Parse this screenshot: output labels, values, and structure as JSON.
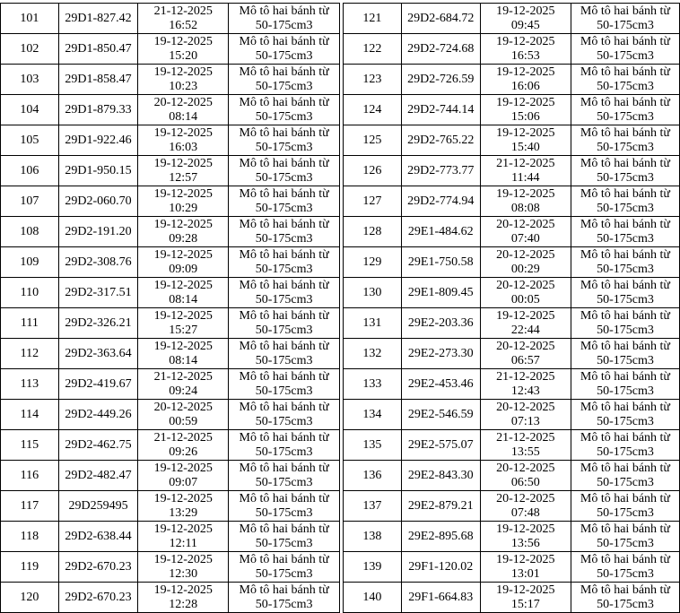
{
  "tables": [
    {
      "rows": [
        {
          "no": "101",
          "plate": "29D1-827.42",
          "time": "21-12-2025 16:52",
          "type": "Mô tô hai bánh từ 50-175cm3"
        },
        {
          "no": "102",
          "plate": "29D1-850.47",
          "time": "19-12-2025 15:20",
          "type": "Mô tô hai bánh từ 50-175cm3"
        },
        {
          "no": "103",
          "plate": "29D1-858.47",
          "time": "19-12-2025 10:23",
          "type": "Mô tô hai bánh từ 50-175cm3"
        },
        {
          "no": "104",
          "plate": "29D1-879.33",
          "time": "20-12-2025 08:14",
          "type": "Mô tô hai bánh từ 50-175cm3"
        },
        {
          "no": "105",
          "plate": "29D1-922.46",
          "time": "19-12-2025 16:03",
          "type": "Mô tô hai bánh từ 50-175cm3"
        },
        {
          "no": "106",
          "plate": "29D1-950.15",
          "time": "19-12-2025 12:57",
          "type": "Mô tô hai bánh từ 50-175cm3"
        },
        {
          "no": "107",
          "plate": "29D2-060.70",
          "time": "19-12-2025 10:29",
          "type": "Mô tô hai bánh từ 50-175cm3"
        },
        {
          "no": "108",
          "plate": "29D2-191.20",
          "time": "19-12-2025 09:28",
          "type": "Mô tô hai bánh từ 50-175cm3"
        },
        {
          "no": "109",
          "plate": "29D2-308.76",
          "time": "19-12-2025 09:09",
          "type": "Mô tô hai bánh từ 50-175cm3"
        },
        {
          "no": "110",
          "plate": "29D2-317.51",
          "time": "19-12-2025 08:14",
          "type": "Mô tô hai bánh từ 50-175cm3"
        },
        {
          "no": "111",
          "plate": "29D2-326.21",
          "time": "19-12-2025 15:27",
          "type": "Mô tô hai bánh từ 50-175cm3"
        },
        {
          "no": "112",
          "plate": "29D2-363.64",
          "time": "19-12-2025 08:14",
          "type": "Mô tô hai bánh từ 50-175cm3"
        },
        {
          "no": "113",
          "plate": "29D2-419.67",
          "time": "21-12-2025 09:24",
          "type": "Mô tô hai bánh từ 50-175cm3"
        },
        {
          "no": "114",
          "plate": "29D2-449.26",
          "time": "20-12-2025 00:59",
          "type": "Mô tô hai bánh từ 50-175cm3"
        },
        {
          "no": "115",
          "plate": "29D2-462.75",
          "time": "21-12-2025 09:26",
          "type": "Mô tô hai bánh từ 50-175cm3"
        },
        {
          "no": "116",
          "plate": "29D2-482.47",
          "time": "19-12-2025 09:07",
          "type": "Mô tô hai bánh từ 50-175cm3"
        },
        {
          "no": "117",
          "plate": "29D259495",
          "time": "19-12-2025 13:29",
          "type": "Mô tô hai bánh từ 50-175cm3"
        },
        {
          "no": "118",
          "plate": "29D2-638.44",
          "time": "19-12-2025 12:11",
          "type": "Mô tô hai bánh từ 50-175cm3"
        },
        {
          "no": "119",
          "plate": "29D2-670.23",
          "time": "19-12-2025 12:30",
          "type": "Mô tô hai bánh từ 50-175cm3"
        },
        {
          "no": "120",
          "plate": "29D2-670.23",
          "time": "19-12-2025 12:28",
          "type": "Mô tô hai bánh từ 50-175cm3"
        }
      ]
    },
    {
      "rows": [
        {
          "no": "121",
          "plate": "29D2-684.72",
          "time": "19-12-2025 09:45",
          "type": "Mô tô hai bánh từ 50-175cm3"
        },
        {
          "no": "122",
          "plate": "29D2-724.68",
          "time": "19-12-2025 16:53",
          "type": "Mô tô hai bánh từ 50-175cm3"
        },
        {
          "no": "123",
          "plate": "29D2-726.59",
          "time": "19-12-2025 16:06",
          "type": "Mô tô hai bánh từ 50-175cm3"
        },
        {
          "no": "124",
          "plate": "29D2-744.14",
          "time": "19-12-2025 15:06",
          "type": "Mô tô hai bánh từ 50-175cm3"
        },
        {
          "no": "125",
          "plate": "29D2-765.22",
          "time": "19-12-2025 15:40",
          "type": "Mô tô hai bánh từ 50-175cm3"
        },
        {
          "no": "126",
          "plate": "29D2-773.77",
          "time": "21-12-2025 11:44",
          "type": "Mô tô hai bánh từ 50-175cm3"
        },
        {
          "no": "127",
          "plate": "29D2-774.94",
          "time": "19-12-2025 08:08",
          "type": "Mô tô hai bánh từ 50-175cm3"
        },
        {
          "no": "128",
          "plate": "29E1-484.62",
          "time": "20-12-2025 07:40",
          "type": "Mô tô hai bánh từ 50-175cm3"
        },
        {
          "no": "129",
          "plate": "29E1-750.58",
          "time": "20-12-2025 00:29",
          "type": "Mô tô hai bánh từ 50-175cm3"
        },
        {
          "no": "130",
          "plate": "29E1-809.45",
          "time": "20-12-2025 00:05",
          "type": "Mô tô hai bánh từ 50-175cm3"
        },
        {
          "no": "131",
          "plate": "29E2-203.36",
          "time": "19-12-2025 22:44",
          "type": "Mô tô hai bánh từ 50-175cm3"
        },
        {
          "no": "132",
          "plate": "29E2-273.30",
          "time": "20-12-2025 06:57",
          "type": "Mô tô hai bánh từ 50-175cm3"
        },
        {
          "no": "133",
          "plate": "29E2-453.46",
          "time": "21-12-2025 12:43",
          "type": "Mô tô hai bánh từ 50-175cm3"
        },
        {
          "no": "134",
          "plate": "29E2-546.59",
          "time": "20-12-2025 07:13",
          "type": "Mô tô hai bánh từ 50-175cm3"
        },
        {
          "no": "135",
          "plate": "29E2-575.07",
          "time": "21-12-2025 13:55",
          "type": "Mô tô hai bánh từ 50-175cm3"
        },
        {
          "no": "136",
          "plate": "29E2-843.30",
          "time": "20-12-2025 06:50",
          "type": "Mô tô hai bánh từ 50-175cm3"
        },
        {
          "no": "137",
          "plate": "29E2-879.21",
          "time": "20-12-2025 07:48",
          "type": "Mô tô hai bánh từ 50-175cm3"
        },
        {
          "no": "138",
          "plate": "29E2-895.68",
          "time": "19-12-2025 13:56",
          "type": "Mô tô hai bánh từ 50-175cm3"
        },
        {
          "no": "139",
          "plate": "29F1-120.02",
          "time": "19-12-2025 13:01",
          "type": "Mô tô hai bánh từ 50-175cm3"
        },
        {
          "no": "140",
          "plate": "29F1-664.83",
          "time": "19-12-2025 15:17",
          "type": "Mô tô hai bánh từ 50-175cm3"
        }
      ]
    }
  ]
}
